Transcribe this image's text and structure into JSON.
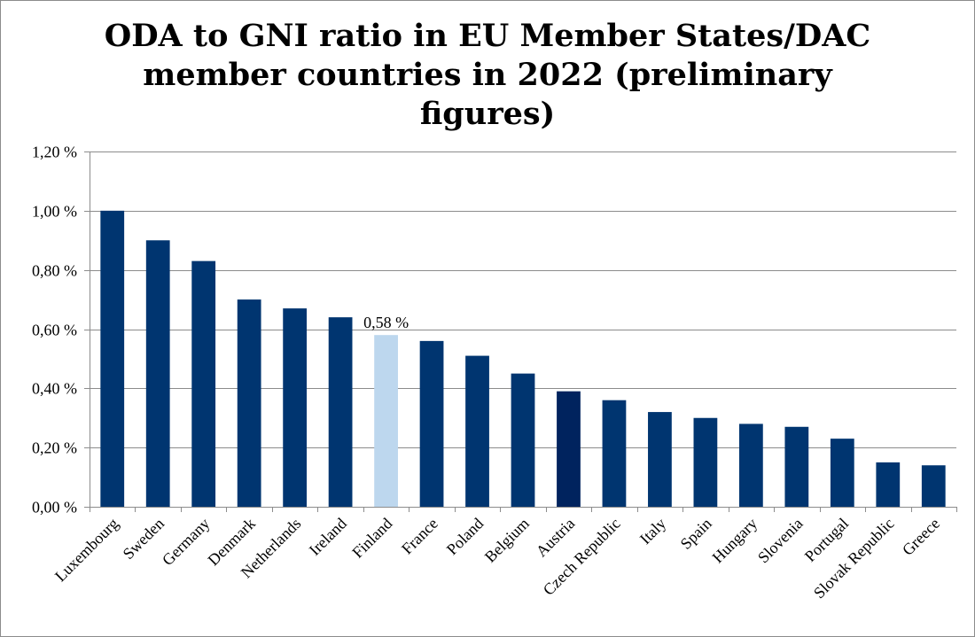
{
  "chart_data": {
    "type": "bar",
    "title": [
      "ODA to GNI ratio in EU Member States/DAC",
      "member countries in 2022 (preliminary",
      "figures)"
    ],
    "categories": [
      "Luxembourg",
      "Sweden",
      "Germany",
      "Denmark",
      "Netherlands",
      "Ireland",
      "Finland",
      "France",
      "Poland",
      "Belgium",
      "Austria",
      "Czech Republic",
      "Italy",
      "Spain",
      "Hungary",
      "Slovenia",
      "Portugal",
      "Slovak Republic",
      "Greece"
    ],
    "values": [
      1.0,
      0.9,
      0.83,
      0.7,
      0.67,
      0.64,
      0.58,
      0.56,
      0.51,
      0.45,
      0.39,
      0.36,
      0.32,
      0.3,
      0.28,
      0.27,
      0.23,
      0.15,
      0.14
    ],
    "bar_colors": [
      "#003570",
      "#003570",
      "#003570",
      "#003570",
      "#003570",
      "#003570",
      "#bdd7ee",
      "#003570",
      "#003570",
      "#003570",
      "#00235e",
      "#003570",
      "#003570",
      "#003570",
      "#003570",
      "#003570",
      "#003570",
      "#003570",
      "#003570"
    ],
    "data_labels": [
      {
        "category": "Finland",
        "text": "0,58 %"
      }
    ],
    "ylim": [
      0,
      1.2
    ],
    "yticks": [
      0,
      0.2,
      0.4,
      0.6,
      0.8,
      1.0,
      1.2
    ],
    "ytick_labels": [
      "0,00 %",
      "0,20 %",
      "0,40 %",
      "0,60 %",
      "0,80 %",
      "1,00 %",
      "1,20 %"
    ],
    "xlabel": "",
    "ylabel": "",
    "grid": true,
    "legend": "none"
  }
}
